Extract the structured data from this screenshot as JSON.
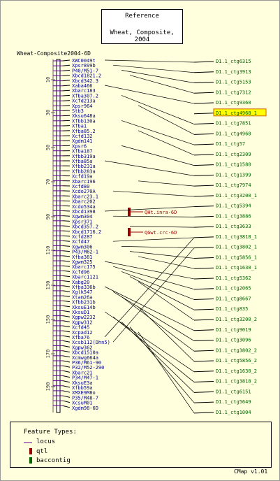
{
  "reference": {
    "line1": "Reference",
    "line2": "Wheat, Composite, 2004"
  },
  "map_name": "Wheat-Composite2004-6D",
  "axis_ticks": [
    "10",
    "30",
    "50",
    "70",
    "90",
    "110",
    "130",
    "150",
    "170",
    "190"
  ],
  "left_markers": [
    "XWC0049t",
    "Xpsr899b",
    "P40/M51-7",
    "Xbcd1821.2",
    "Xbcd342.3",
    "Xaba466",
    "Xbarc183",
    "Xfba307.2",
    "Xcfd213a",
    "Xpsr964",
    "Stb3",
    "Xksu648a",
    "Xfbb130a",
    "Xfba1",
    "Xfba85.2",
    "Xcfd132",
    "Xgdm141",
    "Xpsr6",
    "Xfba187",
    "Xfbb319a",
    "Xfba85a",
    "Xfbb231a",
    "Xfbb283a",
    "Xcfd19a",
    "Xbarc196",
    "Xcfd80",
    "Xcdo270A",
    "Xbarc23.1",
    "Xbarc202",
    "Xcdo534a",
    "Xbcd1398",
    "Xgwm304",
    "Xpsr371",
    "Xbcd357.2",
    "Xbcd1716.2",
    "Xcfd287",
    "Xcfd47",
    "Xgwm306",
    "P43/M62-1",
    "Xfba381",
    "Xgwm325",
    "Xbarc175",
    "Xcfd96",
    "Xbarc1121",
    "Xabg20",
    "Xfba336b",
    "Xglk547",
    "Xtam26a",
    "Xfbb231b",
    "XksuE14b",
    "XksuD1",
    "Xgpw2232",
    "Xgpw312",
    "Xcfd45",
    "Xcpad12",
    "Xfba76",
    "Xcsb112(Dhn5)",
    "Xgpw362",
    "Xbcd1510a",
    "Xcmwg664a",
    "P36/M61-90",
    "P32/M52-290",
    "Xbarc21",
    "P34/M47-1",
    "XksuE3a",
    "Xfbb59a",
    "XMXE9M8o",
    "P35/M48-7",
    "XcsuM01",
    "Xgdm98-6D"
  ],
  "qtls": [
    "QHt.inra-6D",
    "QGwt.crc-6D"
  ],
  "contigs": [
    "D1.1_ctg6315",
    "D1.1_ctg3913",
    "D1.1_ctg5153",
    "D1.1_ctg7312",
    "D1.1_ctg9360",
    "D1.1_ctg4968_1",
    "D1.1_ctg7851",
    "D1.1_ctg4968",
    "D1.1_ctg57",
    "D1.1_ctg2309",
    "D1.1_ctg1580",
    "D1.1_ctg1399",
    "D1.1_ctg7974",
    "D1.1_ctg3200_1",
    "D1.1_ctg5394",
    "D1.1_ctg3886",
    "D1.1_ctg3633",
    "D1.1_ctg3818_1",
    "D1.1_ctg3802_1",
    "D1.1_ctg5856_1",
    "D1.1_ctg1630_1",
    "D1.1_ctg5362",
    "D1.1_ctg2065",
    "D1.1_ctg8667",
    "D1.1_ctg835",
    "D1.1_ctg3200_2",
    "D1.1_ctg9019",
    "D1.1_ctg3096",
    "D1.1_ctg3802_2",
    "D1.1_ctg5856_2",
    "D1.1_ctg1630_2",
    "D1.1_ctg3818_2",
    "D1.1_ctg6151",
    "D1.1_ctg5649",
    "D1.1_ctg1004"
  ],
  "highlighted_contig": "D1.1_ctg4968_1",
  "legend": {
    "title": "Feature Types:",
    "items": [
      {
        "label": "locus",
        "icon": "line-swatch",
        "color": "#660099"
      },
      {
        "label": "qtl",
        "icon": "bar-swatch",
        "color": "#990000"
      },
      {
        "label": "baccontig",
        "icon": "bar-swatch",
        "color": "#006600"
      }
    ]
  },
  "credit": "CMap v1.01",
  "colors": {
    "background": "#ffffdd",
    "locus": "#660099",
    "marker_text": "#000099",
    "qtl": "#990000",
    "contig": "#006600",
    "highlight_bg": "#ffff00",
    "highlight_border": "#cc6600"
  }
}
